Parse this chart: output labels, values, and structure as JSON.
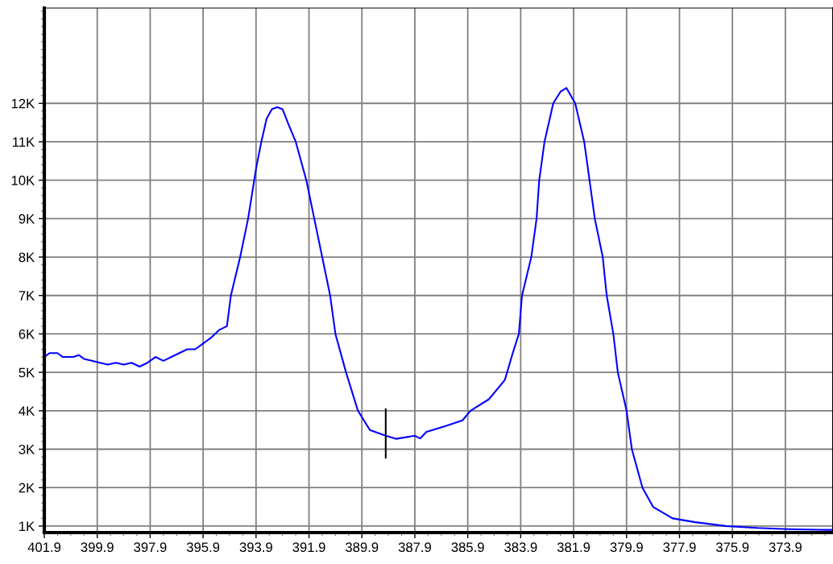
{
  "chart_data": {
    "type": "line",
    "xlim": [
      401.9,
      372.1
    ],
    "ylim": [
      830,
      14480
    ],
    "xticks": [
      401.9,
      399.9,
      397.9,
      395.9,
      393.9,
      391.9,
      389.9,
      387.9,
      385.9,
      383.9,
      381.9,
      379.9,
      377.9,
      375.9,
      373.9
    ],
    "yticks": [
      {
        "value": 1000,
        "label": "1K"
      },
      {
        "value": 2000,
        "label": "2K"
      },
      {
        "value": 3000,
        "label": "3K"
      },
      {
        "value": 4000,
        "label": "4K"
      },
      {
        "value": 5000,
        "label": "5K"
      },
      {
        "value": 6000,
        "label": "6K"
      },
      {
        "value": 7000,
        "label": "7K"
      },
      {
        "value": 8000,
        "label": "8K"
      },
      {
        "value": 9000,
        "label": "9K"
      },
      {
        "value": 10000,
        "label": "10K"
      },
      {
        "value": 11000,
        "label": "11K"
      },
      {
        "value": 12000,
        "label": "12K"
      }
    ],
    "grid": true,
    "legend": false,
    "marker": "none",
    "line_style": "solid",
    "series": [
      {
        "color": "#0000ff",
        "x": [
          401.9,
          401.7,
          401.4,
          401.2,
          400.8,
          400.6,
          400.4,
          400.1,
          399.8,
          399.5,
          399.2,
          398.9,
          398.6,
          398.3,
          398.0,
          397.7,
          397.4,
          397.1,
          396.8,
          396.5,
          396.2,
          395.9,
          395.6,
          395.3,
          395.0,
          394.85,
          394.5,
          394.2,
          393.9,
          393.7,
          393.5,
          393.3,
          393.1,
          392.9,
          392.7,
          392.4,
          392.0,
          391.7,
          391.4,
          391.1,
          390.9,
          390.5,
          390.05,
          389.6,
          389.0,
          388.6,
          387.9,
          387.7,
          387.46,
          386.76,
          386.1,
          385.8,
          385.1,
          384.5,
          384.2,
          383.97,
          383.85,
          383.5,
          383.3,
          383.2,
          383.0,
          382.67,
          382.4,
          382.17,
          381.84,
          381.5,
          381.3,
          381.1,
          380.8,
          380.65,
          380.4,
          380.23,
          379.9,
          379.7,
          379.3,
          378.9,
          378.16,
          377.3,
          376.15,
          374.97,
          373.8,
          372.3,
          372.1
        ],
        "values": [
          5400,
          5500,
          5500,
          5400,
          5400,
          5450,
          5350,
          5300,
          5250,
          5200,
          5250,
          5200,
          5250,
          5150,
          5250,
          5400,
          5300,
          5400,
          5500,
          5600,
          5600,
          5750,
          5900,
          6100,
          6200,
          7000,
          8000,
          9000,
          10300,
          11000,
          11600,
          11850,
          11900,
          11850,
          11500,
          11000,
          10000,
          9000,
          8000,
          7000,
          6000,
          5000,
          4000,
          3500,
          3350,
          3270,
          3350,
          3280,
          3450,
          3600,
          3750,
          4000,
          4300,
          4800,
          5500,
          6000,
          7000,
          8000,
          9000,
          10000,
          11000,
          12000,
          12300,
          12400,
          12000,
          11000,
          10000,
          9000,
          8000,
          7000,
          6000,
          5000,
          4000,
          3000,
          2000,
          1500,
          1200,
          1100,
          1000,
          950,
          920,
          900,
          900
        ]
      },
      {
        "color": "#000000",
        "x": [
          389.0,
          389.0
        ],
        "values": [
          4040,
          2780
        ]
      }
    ]
  }
}
